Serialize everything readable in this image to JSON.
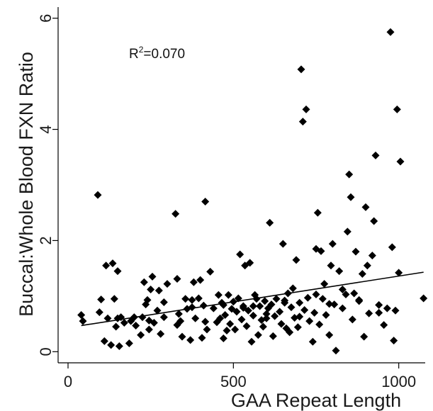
{
  "chart_data": {
    "type": "scatter",
    "title": "",
    "xlabel": "GAA Repeat Length",
    "ylabel": "Buccal:Whole Blood FXN Ratio",
    "xlim": [
      -30,
      1080
    ],
    "ylim": [
      -0.2,
      6.2
    ],
    "x_ticks": [
      0,
      500,
      1000
    ],
    "y_ticks": [
      0,
      2,
      4,
      6
    ],
    "grid": false,
    "legend": "none",
    "marker": "diamond",
    "marker_color": "#000000",
    "annotation": {
      "base": "R",
      "sup": "2",
      "rest": "=0.070"
    },
    "trendline": {
      "x": [
        40,
        1075
      ],
      "y": [
        0.47,
        1.43
      ]
    },
    "series": [
      {
        "x": [
          40,
          45,
          90,
          95,
          110,
          115,
          120,
          130,
          135,
          140,
          145,
          150,
          155,
          160,
          170,
          185,
          190,
          205,
          220,
          225,
          230,
          235,
          240,
          245,
          250,
          255,
          260,
          270,
          275,
          280,
          290,
          300,
          325,
          330,
          335,
          340,
          345,
          355,
          360,
          370,
          375,
          380,
          385,
          395,
          400,
          405,
          410,
          415,
          420,
          430,
          440,
          450,
          455,
          460,
          465,
          470,
          475,
          480,
          485,
          490,
          495,
          500,
          505,
          510,
          515,
          520,
          525,
          530,
          535,
          540,
          545,
          550,
          555,
          560,
          565,
          570,
          575,
          580,
          585,
          590,
          595,
          600,
          605,
          610,
          615,
          620,
          625,
          630,
          640,
          645,
          650,
          655,
          660,
          665,
          670,
          675,
          680,
          685,
          690,
          695,
          700,
          705,
          710,
          715,
          720,
          725,
          730,
          740,
          745,
          750,
          755,
          760,
          765,
          770,
          775,
          780,
          790,
          795,
          800,
          805,
          810,
          820,
          830,
          840,
          845,
          850,
          855,
          860,
          865,
          870,
          880,
          890,
          895,
          900,
          905,
          910,
          920,
          925,
          930,
          940,
          955,
          965,
          975,
          980,
          985,
          990,
          995,
          1000,
          1005,
          1075,
          100,
          150,
          200,
          245,
          290,
          330,
          375,
          415,
          470,
          530,
          560,
          600,
          655,
          700,
          750,
          790,
          830,
          880,
          940
        ],
        "y": [
          0.66,
          0.55,
          2.82,
          0.71,
          0.19,
          1.55,
          0.6,
          0.12,
          1.59,
          0.95,
          0.45,
          0.6,
          0.1,
          0.62,
          0.52,
          0.15,
          0.55,
          0.47,
          0.3,
          0.62,
          1.25,
          0.85,
          0.93,
          0.4,
          1.12,
          1.35,
          0.52,
          0.74,
          1.1,
          0.32,
          0.89,
          1.22,
          2.48,
          1.31,
          0.68,
          0.55,
          0.27,
          0.95,
          0.77,
          0.21,
          0.8,
          1.25,
          0.6,
          0.96,
          1.29,
          0.25,
          0.83,
          2.7,
          0.4,
          1.44,
          0.78,
          0.53,
          1.02,
          0.6,
          0.88,
          0.24,
          0.66,
          0.38,
          1.02,
          0.5,
          0.77,
          0.9,
          0.4,
          0.72,
          0.96,
          1.75,
          0.58,
          0.82,
          1.55,
          0.46,
          0.74,
          1.6,
          0.18,
          0.65,
          1.02,
          0.95,
          0.3,
          0.82,
          0.57,
          0.45,
          0.91,
          0.6,
          0.78,
          2.32,
          0.85,
          0.28,
          0.64,
          0.95,
          0.72,
          0.5,
          1.94,
          0.88,
          0.42,
          1.05,
          0.35,
          0.8,
          1.14,
          0.61,
          1.65,
          0.44,
          0.88,
          5.08,
          4.14,
          0.75,
          4.36,
          0.97,
          0.55,
          0.18,
          0.7,
          1.85,
          2.5,
          0.49,
          1.81,
          0.95,
          1.22,
          0.66,
          0.3,
          1.55,
          1.94,
          0.85,
          0.02,
          1.45,
          0.78,
          1.03,
          2.16,
          3.19,
          2.78,
          0.58,
          1.05,
          1.8,
          0.93,
          1.4,
          0.27,
          2.6,
          1.55,
          0.69,
          1.73,
          2.35,
          3.53,
          0.84,
          0.48,
          0.78,
          5.75,
          1.88,
          0.2,
          0.74,
          4.36,
          1.42,
          3.42,
          0.96,
          0.94,
          1.45,
          0.62,
          0.56,
          0.62,
          0.48,
          0.93,
          0.54,
          0.84,
          0.79,
          0.82,
          0.68,
          0.92,
          0.63,
          1.03,
          0.86,
          1.12,
          0.91,
          0.7
        ]
      }
    ]
  }
}
